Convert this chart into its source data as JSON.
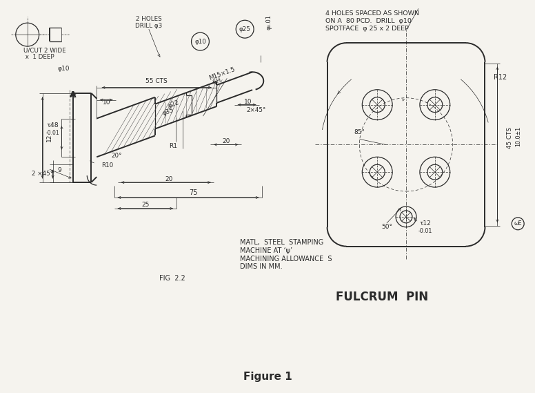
{
  "background_color": "#f5f3ee",
  "title": "Figure 1",
  "title_fontsize": 11,
  "title_fontstyle": "bold",
  "fig_label": "FIG  2.2",
  "part_name": "FULCRUM  PIN",
  "notes_line1": "MATL,  STEEL  STAMPING",
  "notes_line2": "MACHINE AT ‘ψ’",
  "notes_line3": "MACHINING ALLOWANCE  S",
  "notes_line4": "DIMS IN MM.",
  "top_right_note1": "4 HOLES SPACED AS SHOWN",
  "top_right_note2": "ON A  80 PCD.  DRILL  φ10",
  "top_right_note3": "SPOTFACE  φ 25 x 2 DEEP",
  "line_color": "#2a2a2a",
  "dim_color": "#1a1a1a"
}
